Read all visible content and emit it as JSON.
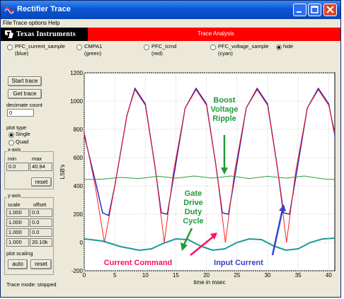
{
  "window": {
    "title": "Rectifier Trace"
  },
  "menu": [
    "File",
    "Trace options",
    "Help"
  ],
  "brand": {
    "logo_text": "Texas Instruments",
    "banner_title": "Trace Analysis"
  },
  "signal_selector": [
    {
      "name": "PFC_current_sample",
      "color": "(blue)",
      "checked": false
    },
    {
      "name": "CMPA1",
      "color": "(green)",
      "checked": false
    },
    {
      "name": "PFC_Icmd",
      "color": "(red)",
      "checked": false
    },
    {
      "name": "PFC_voltage_sample",
      "color": "(cyan)",
      "checked": false
    },
    {
      "name": "hide",
      "color": "",
      "checked": true
    }
  ],
  "controls": {
    "start_trace": "Start trace",
    "get_trace": "Get trace",
    "decimate_label": "decimate count",
    "decimate_value": "0",
    "plot_type_label": "plot type",
    "plot_type_options": [
      {
        "label": "Single",
        "checked": true
      },
      {
        "label": "Quad",
        "checked": false
      }
    ],
    "xaxis": {
      "title": "x-axis",
      "min_label": "min",
      "max_label": "max",
      "min_value": "0.0",
      "max_value": "40.94",
      "reset": "reset"
    },
    "yaxis": {
      "title": "y-axis",
      "scale_label": "scale",
      "offset_label": "offset",
      "rows": [
        {
          "scale": "1.000",
          "offset": "0.0"
        },
        {
          "scale": "1.000",
          "offset": "0.0"
        },
        {
          "scale": "1.000",
          "offset": "0.0"
        },
        {
          "scale": "1.000",
          "offset": "20.10k"
        }
      ]
    },
    "plot_scaling_label": "plot scaling",
    "auto": "auto",
    "reset": "reset",
    "status": "Trace mode: stopped"
  },
  "annotations": {
    "boost_ripple": [
      "Boost",
      "Voltage",
      "Ripple"
    ],
    "gate_drive": [
      "Gate",
      "Drive",
      "Duty",
      "Cycle"
    ],
    "current_command": "Current Command",
    "input_current": "Input Current",
    "colors": {
      "green": "#1f9a3a",
      "red": "#ff1060",
      "blue": "#3344cc"
    }
  },
  "chart_data": {
    "type": "line",
    "title": "",
    "xlabel": "time in msec",
    "ylabel": "LSB's",
    "xlim": [
      0,
      41
    ],
    "ylim": [
      -200,
      1200
    ],
    "xticks": [
      "0",
      "5",
      "10",
      "15",
      "20",
      "25",
      "30",
      "35",
      "40"
    ],
    "yticks": [
      "-200",
      "0",
      "200",
      "400",
      "600",
      "800",
      "1000",
      "1200"
    ],
    "grid": true,
    "series": [
      {
        "color": "#2020c0",
        "x": [
          0,
          2,
          3,
          4,
          5,
          7,
          8.3,
          10,
          11.5,
          12.6,
          13.6,
          15,
          16.5,
          18.3,
          20,
          21.5,
          22.6,
          23.6,
          25,
          26.5,
          28.3,
          30,
          31.5,
          32.6,
          33.6,
          35,
          36.5,
          38.3,
          40,
          41
        ],
        "y": [
          760,
          400,
          210,
          190,
          400,
          900,
          1090,
          980,
          560,
          210,
          200,
          560,
          950,
          1090,
          980,
          560,
          210,
          200,
          560,
          950,
          1090,
          980,
          560,
          210,
          200,
          560,
          950,
          1090,
          980,
          760
        ]
      },
      {
        "color": "#ff2020",
        "x": [
          0,
          1.8,
          3.3,
          5,
          7,
          8.3,
          10,
          11.7,
          13.1,
          14.6,
          16.5,
          18.3,
          20,
          21.7,
          23.1,
          24.6,
          26.5,
          28.3,
          30,
          31.7,
          33.1,
          34.6,
          36.5,
          38.3,
          40,
          41
        ],
        "y": [
          780,
          400,
          0,
          400,
          900,
          1080,
          970,
          500,
          0,
          500,
          950,
          1080,
          970,
          500,
          0,
          500,
          950,
          1080,
          970,
          500,
          0,
          500,
          950,
          1080,
          970,
          780
        ]
      },
      {
        "color": "#2a9a3a",
        "x": [
          0,
          3,
          6,
          9,
          12,
          15,
          18,
          21,
          24,
          27,
          30,
          33,
          36,
          39,
          41
        ],
        "y": [
          445,
          448,
          460,
          452,
          468,
          455,
          470,
          455,
          470,
          452,
          468,
          455,
          470,
          450,
          445
        ]
      },
      {
        "color": "#1a9a9a",
        "x": [
          0,
          3,
          6,
          9,
          11,
          13,
          15,
          17,
          19,
          21,
          23,
          25,
          27,
          29,
          31,
          33,
          35,
          37,
          39,
          41
        ],
        "y": [
          25,
          10,
          -30,
          -55,
          -45,
          -5,
          25,
          20,
          -25,
          -55,
          -45,
          0,
          25,
          20,
          -25,
          -55,
          -45,
          0,
          25,
          30
        ]
      }
    ]
  }
}
